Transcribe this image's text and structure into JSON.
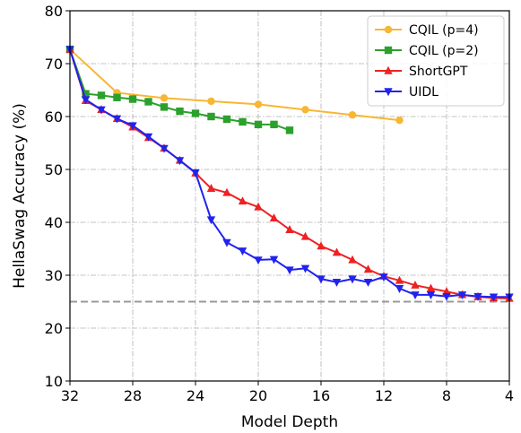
{
  "chart_data": {
    "type": "line",
    "xlabel": "Model Depth",
    "ylabel": "HellaSwag Accuracy (%)",
    "xlim": [
      32,
      4
    ],
    "ylim": [
      10,
      80
    ],
    "x_ticks": [
      "32",
      "28",
      "24",
      "20",
      "16",
      "12",
      "8",
      "4"
    ],
    "y_ticks": [
      "10",
      "20",
      "30",
      "40",
      "50",
      "60",
      "70",
      "80"
    ],
    "grid": "dash-dot",
    "legend_position": "top-right",
    "reference_line": {
      "y": 25,
      "style": "dashed",
      "color": "#999999"
    },
    "series": [
      {
        "name": "CQIL (p=4)",
        "color": "#f7b733",
        "marker": "circle",
        "x": [
          32,
          29,
          26,
          23,
          20,
          17,
          14,
          11
        ],
        "y": [
          72.7,
          64.5,
          63.5,
          62.9,
          62.3,
          61.3,
          60.3,
          59.3
        ]
      },
      {
        "name": "CQIL (p=2)",
        "color": "#2ca02c",
        "marker": "square",
        "x": [
          32,
          31,
          30,
          29,
          28,
          27,
          26,
          25,
          24,
          23,
          22,
          21,
          20,
          19,
          18
        ],
        "y": [
          72.7,
          64.3,
          64.0,
          63.6,
          63.3,
          62.8,
          61.8,
          61.0,
          60.6,
          60.0,
          59.5,
          59.0,
          58.5,
          58.5,
          57.4
        ]
      },
      {
        "name": "ShortGPT",
        "color": "#ee2222",
        "marker": "triangle-up",
        "x": [
          32,
          31,
          30,
          29,
          28,
          27,
          26,
          25,
          24,
          23,
          22,
          21,
          20,
          19,
          18,
          17,
          16,
          15,
          14,
          13,
          12,
          11,
          10,
          9,
          8,
          7,
          6,
          5,
          4
        ],
        "y": [
          72.7,
          63.0,
          61.3,
          59.6,
          58.0,
          56.0,
          54.0,
          51.7,
          49.3,
          46.4,
          45.6,
          44.0,
          42.9,
          40.8,
          38.6,
          37.3,
          35.5,
          34.3,
          32.9,
          31.1,
          29.8,
          29.0,
          28.1,
          27.5,
          26.9,
          26.3,
          25.9,
          25.7,
          25.6
        ]
      },
      {
        "name": "UIDL",
        "color": "#2222ee",
        "marker": "triangle-down",
        "x": [
          32,
          31,
          30,
          29,
          28,
          27,
          26,
          25,
          24,
          23,
          22,
          21,
          20,
          19,
          18,
          17,
          16,
          15,
          14,
          13,
          12,
          11,
          10,
          9,
          8,
          7,
          6,
          5,
          4
        ],
        "y": [
          72.7,
          63.2,
          61.3,
          59.6,
          58.3,
          56.2,
          54.0,
          51.7,
          49.4,
          40.5,
          36.2,
          34.6,
          32.9,
          33.0,
          31.0,
          31.3,
          29.3,
          28.7,
          29.3,
          28.7,
          29.7,
          27.5,
          26.3,
          26.3,
          26.0,
          26.3,
          26.0,
          25.9,
          25.9
        ]
      }
    ]
  }
}
